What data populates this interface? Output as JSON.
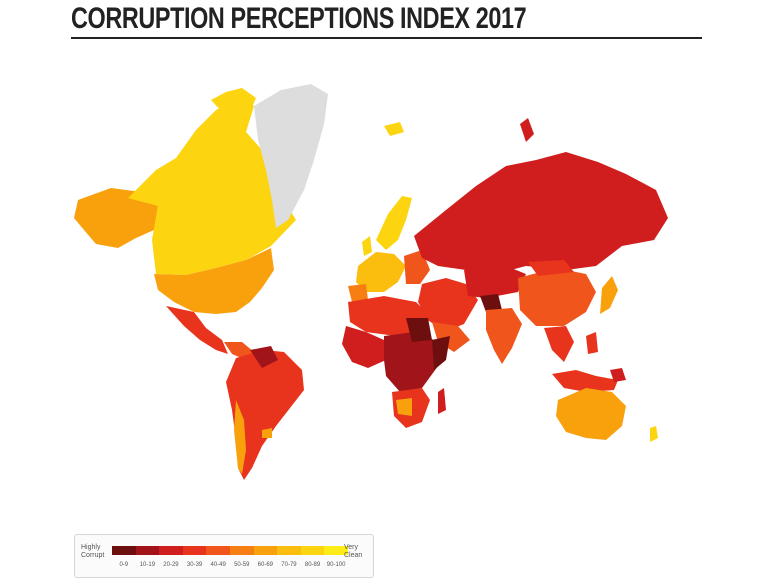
{
  "header": {
    "title": "CORRUPTION PERCEPTIONS INDEX 2017"
  },
  "legend": {
    "low_label_line1": "Highly",
    "low_label_line2": "Corrupt",
    "high_label_line1": "Very",
    "high_label_line2": "Clean",
    "bands": [
      {
        "label": "0-9",
        "color": "#6d0f0f"
      },
      {
        "label": "10-19",
        "color": "#a1141a"
      },
      {
        "label": "20-29",
        "color": "#d01e1e"
      },
      {
        "label": "30-39",
        "color": "#e8331d"
      },
      {
        "label": "40-49",
        "color": "#f0561b"
      },
      {
        "label": "50-59",
        "color": "#f77e12"
      },
      {
        "label": "60-69",
        "color": "#f9a10d"
      },
      {
        "label": "70-79",
        "color": "#fbbd0e"
      },
      {
        "label": "80-89",
        "color": "#fcd40f"
      },
      {
        "label": "90-100",
        "color": "#fdec15"
      }
    ],
    "no_data_color": "#dddddd"
  }
}
